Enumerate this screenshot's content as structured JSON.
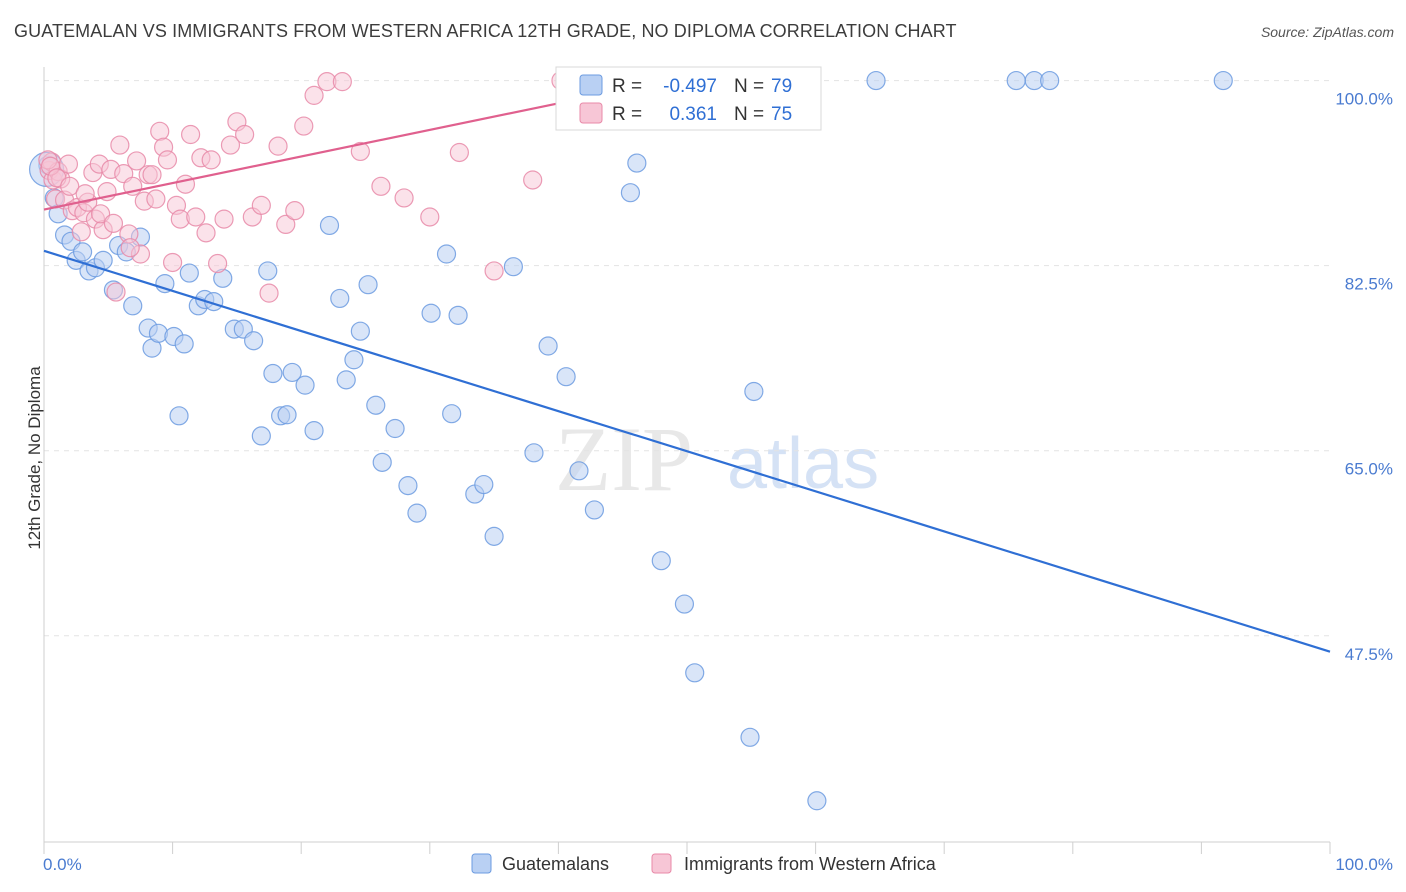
{
  "title": "GUATEMALAN VS IMMIGRANTS FROM WESTERN AFRICA 12TH GRADE, NO DIPLOMA CORRELATION CHART",
  "source": "Source: ZipAtlas.com",
  "watermark": {
    "zip": "ZIP",
    "atlas": "atlas"
  },
  "chart_data": {
    "type": "scatter",
    "title": "GUATEMALAN VS IMMIGRANTS FROM WESTERN AFRICA 12TH GRADE, NO DIPLOMA CORRELATION CHART",
    "xlabel": "",
    "ylabel": "12th Grade, No Diploma",
    "xlim": [
      0,
      100
    ],
    "ylim": [
      28,
      101
    ],
    "x_tick_labels": {
      "min": "0.0%",
      "max": "100.0%"
    },
    "y_ticks": [
      {
        "value": 100.0,
        "label": "100.0%"
      },
      {
        "value": 82.5,
        "label": "82.5%"
      },
      {
        "value": 65.0,
        "label": "65.0%"
      },
      {
        "value": 47.5,
        "label": "47.5%"
      }
    ],
    "grid": true,
    "legend_position": "top-center",
    "series": [
      {
        "name": "Guatemalans",
        "color": "#6c9be0",
        "fill": "#b9d0f3",
        "line_color": "#2f6fd4",
        "R": "-0.497",
        "N": "79",
        "trend": {
          "x": [
            0,
            100
          ],
          "y": [
            83.9,
            46.0
          ]
        },
        "x": [
          0.3,
          0.8,
          1.1,
          1.6,
          2.1,
          2.5,
          3.0,
          3.5,
          4.0,
          4.6,
          5.4,
          5.8,
          6.4,
          6.9,
          7.5,
          8.1,
          8.4,
          8.9,
          9.4,
          10.1,
          10.5,
          10.9,
          11.3,
          12.0,
          12.5,
          13.2,
          13.9,
          14.8,
          15.5,
          16.3,
          16.9,
          17.4,
          17.8,
          18.4,
          18.9,
          19.3,
          20.3,
          21.0,
          22.2,
          23.0,
          23.5,
          24.1,
          24.6,
          25.2,
          25.8,
          26.3,
          27.3,
          28.3,
          29.0,
          30.1,
          31.3,
          31.7,
          32.2,
          33.5,
          34.2,
          35.0,
          36.5,
          38.1,
          39.2,
          40.6,
          41.6,
          42.8,
          43.8,
          45.6,
          46.1,
          48.0,
          49.8,
          50.6,
          54.9,
          55.2,
          58.3,
          58.9,
          60.1,
          64.7,
          75.6,
          77.0,
          78.2,
          91.7,
          0.2
        ],
        "y": [
          92.0,
          88.9,
          87.4,
          85.4,
          84.8,
          83.0,
          83.8,
          82.0,
          82.3,
          83.0,
          80.2,
          84.4,
          83.8,
          78.7,
          85.2,
          76.6,
          74.7,
          76.1,
          80.8,
          75.8,
          68.3,
          75.1,
          81.8,
          78.7,
          79.3,
          79.1,
          81.3,
          76.5,
          76.5,
          75.4,
          66.4,
          82.0,
          72.3,
          68.3,
          68.4,
          72.4,
          71.2,
          66.9,
          86.3,
          79.4,
          71.7,
          73.6,
          76.3,
          80.7,
          69.3,
          63.9,
          67.1,
          61.7,
          59.1,
          78.0,
          83.6,
          68.5,
          77.8,
          60.9,
          61.8,
          56.9,
          82.4,
          64.8,
          74.9,
          72.0,
          63.1,
          59.4,
          97.9,
          89.4,
          92.2,
          54.6,
          50.5,
          44.0,
          37.9,
          70.6,
          100.0,
          100.0,
          31.9,
          100.0,
          100.0,
          100.0,
          100.0,
          100.0,
          91.6
        ]
      },
      {
        "name": "Immigrants from Western Africa",
        "color": "#e889a8",
        "fill": "#f7c6d6",
        "line_color": "#e0608e",
        "R": "0.361",
        "N": "75",
        "trend": {
          "x": [
            0,
            40.2
          ],
          "y": [
            87.8,
            97.9
          ]
        },
        "x": [
          0.4,
          0.6,
          0.7,
          0.9,
          1.1,
          1.3,
          1.6,
          1.9,
          2.2,
          2.6,
          2.9,
          3.1,
          3.4,
          3.8,
          4.0,
          4.3,
          4.6,
          4.9,
          5.2,
          5.6,
          5.9,
          6.2,
          6.6,
          6.9,
          7.2,
          7.5,
          7.8,
          8.1,
          8.4,
          8.7,
          9.0,
          9.3,
          9.6,
          10.0,
          10.3,
          10.6,
          11.0,
          11.4,
          11.8,
          12.2,
          12.6,
          13.0,
          13.5,
          14.0,
          14.5,
          15.0,
          15.6,
          16.2,
          16.9,
          17.5,
          18.2,
          18.8,
          19.5,
          20.2,
          21.0,
          22.0,
          23.2,
          24.6,
          26.2,
          28.0,
          30.0,
          32.3,
          35.0,
          38.0,
          40.2,
          41.0,
          41.5,
          0.3,
          0.5,
          1.0,
          2.0,
          3.2,
          4.4,
          5.4,
          6.7
        ],
        "y": [
          91.5,
          92.3,
          90.6,
          88.8,
          91.4,
          90.7,
          88.7,
          92.1,
          87.7,
          88.0,
          85.7,
          87.5,
          88.5,
          91.3,
          86.9,
          92.1,
          85.9,
          89.5,
          91.6,
          80.0,
          93.9,
          91.2,
          85.5,
          90.0,
          92.4,
          83.6,
          88.6,
          91.1,
          91.1,
          88.8,
          95.2,
          93.7,
          92.5,
          82.8,
          88.2,
          86.9,
          90.2,
          94.9,
          87.1,
          92.7,
          85.6,
          92.5,
          82.7,
          86.9,
          93.9,
          96.1,
          94.9,
          87.1,
          88.2,
          79.9,
          93.8,
          86.4,
          87.7,
          95.7,
          98.6,
          99.9,
          99.9,
          93.3,
          90.0,
          88.9,
          87.1,
          93.2,
          82.0,
          90.6,
          100.0,
          100.0,
          100.0,
          92.5,
          91.9,
          90.8,
          90.0,
          89.3,
          87.4,
          86.5,
          84.2
        ]
      }
    ]
  },
  "legend": {
    "r_label": "R =",
    "n_label": "N =",
    "bottom": [
      "Guatemalans",
      "Immigrants from Western Africa"
    ]
  }
}
